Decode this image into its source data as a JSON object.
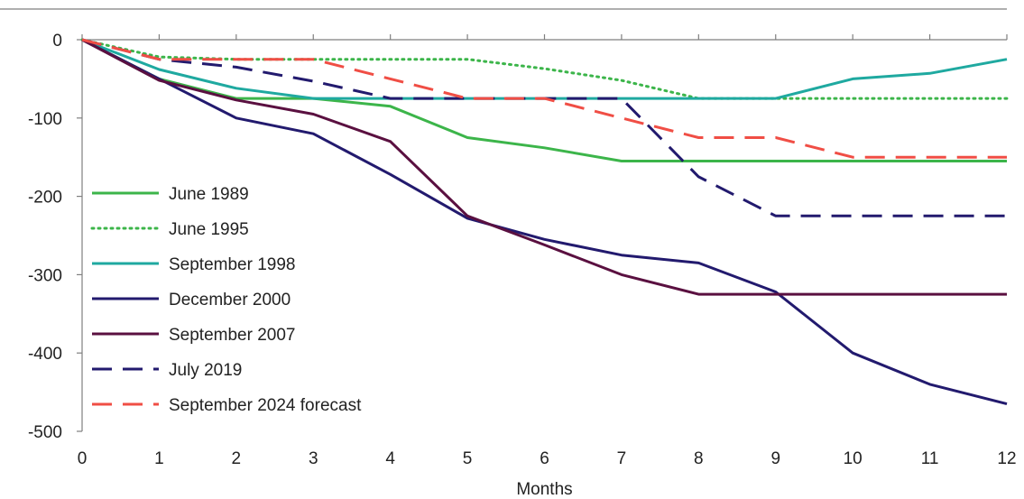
{
  "chart_data": {
    "type": "line",
    "title": "",
    "xlabel": "Months",
    "ylabel": "",
    "x": [
      0,
      1,
      2,
      3,
      4,
      5,
      6,
      7,
      8,
      9,
      10,
      11,
      12
    ],
    "x_ticks": [
      "0",
      "1",
      "2",
      "3",
      "4",
      "5",
      "6",
      "7",
      "8",
      "9",
      "10",
      "11",
      "12"
    ],
    "xlim": [
      0,
      12
    ],
    "ylim": [
      -500,
      0
    ],
    "y_ticks": [
      "0",
      "-100",
      "-200",
      "-300",
      "-400",
      "-500"
    ],
    "y_tick_values": [
      0,
      -100,
      -200,
      -300,
      -400,
      -500
    ],
    "grid": false,
    "legend_position": "left",
    "series": [
      {
        "name": "June 1989",
        "color": "#3cb54a",
        "style": "solid",
        "values": [
          0,
          -50,
          -75,
          -75,
          -85,
          -125,
          -138,
          -155,
          -155,
          -155,
          -155,
          -155,
          -155
        ]
      },
      {
        "name": "June 1995",
        "color": "#3cb54a",
        "style": "dotted",
        "values": [
          0,
          -22,
          -25,
          -25,
          -25,
          -25,
          -37,
          -52,
          -75,
          -75,
          -75,
          -75,
          -75
        ]
      },
      {
        "name": "September 1998",
        "color": "#1fa9a0",
        "style": "solid",
        "values": [
          0,
          -38,
          -62,
          -75,
          -75,
          -75,
          -75,
          -75,
          -75,
          -75,
          -50,
          -43,
          -25
        ]
      },
      {
        "name": "December 2000",
        "color": "#221a6e",
        "style": "solid",
        "values": [
          0,
          -50,
          -100,
          -120,
          -172,
          -228,
          -255,
          -275,
          -285,
          -322,
          -400,
          -440,
          -465
        ]
      },
      {
        "name": "September 2007",
        "color": "#5a1040",
        "style": "solid",
        "values": [
          0,
          -52,
          -77,
          -95,
          -130,
          -225,
          -262,
          -300,
          -325,
          -325,
          -325,
          -325,
          -325
        ]
      },
      {
        "name": "July 2019",
        "color": "#221a6e",
        "style": "dashed",
        "values": [
          0,
          -25,
          -35,
          -53,
          -75,
          -75,
          -75,
          -75,
          -175,
          -225,
          -225,
          -225,
          -225
        ]
      },
      {
        "name": "September 2024 forecast",
        "color": "#f04e45",
        "style": "dashed",
        "values": [
          0,
          -25,
          -25,
          -25,
          -50,
          -75,
          -75,
          -100,
          -125,
          -125,
          -150,
          -150,
          -150
        ]
      }
    ]
  }
}
